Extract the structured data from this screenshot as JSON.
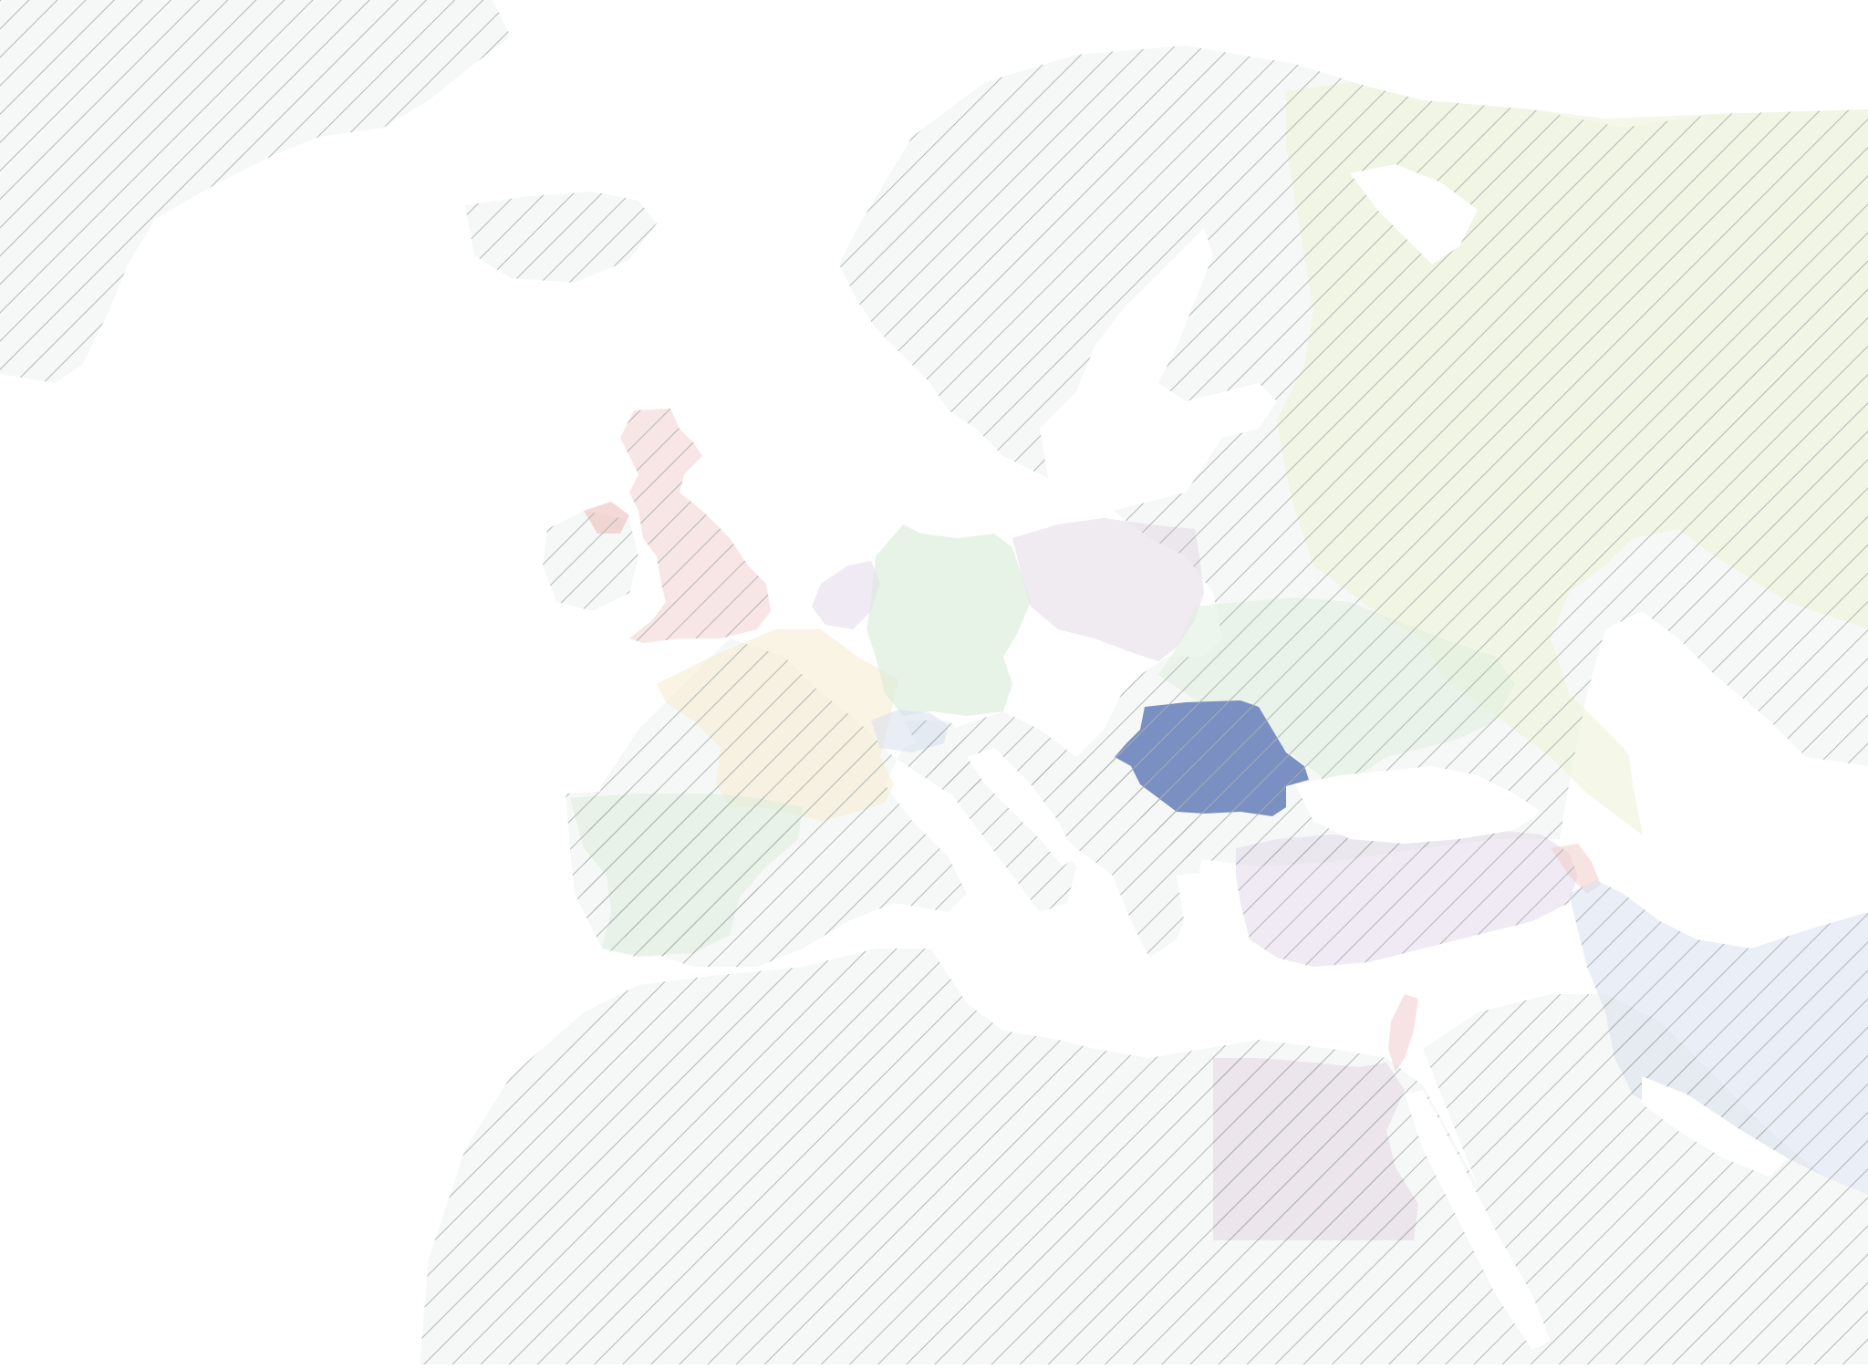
{
  "map": {
    "style": "muted hatched land",
    "colors": {
      "background": "#ffffff",
      "land": "#f6f8f7",
      "hatch": "#aab2ad",
      "selected": "#7a8fc2"
    },
    "selected_country": "Romania",
    "highlighted_countries": [
      {
        "id": "russia",
        "color": "#ecf2d5"
      },
      {
        "id": "united-kingdom",
        "color": "#f0d2d0"
      },
      {
        "id": "france",
        "color": "#f6ebcf"
      },
      {
        "id": "spain",
        "color": "#dcecdc"
      },
      {
        "id": "germany",
        "color": "#d6ead6"
      },
      {
        "id": "poland",
        "color": "#e4d9e6"
      },
      {
        "id": "ukraine",
        "color": "#deeede"
      },
      {
        "id": "benelux",
        "color": "#e2d9ea"
      },
      {
        "id": "switzerland",
        "color": "#d6dfee"
      },
      {
        "id": "romania",
        "color": "#7a8fc2"
      },
      {
        "id": "turkey",
        "color": "#e2d9ea"
      },
      {
        "id": "egypt",
        "color": "#e4d6e4"
      },
      {
        "id": "israel",
        "color": "#f0cccc"
      },
      {
        "id": "armenia",
        "color": "#f2cccc"
      },
      {
        "id": "iran",
        "color": "#d9e0ee"
      }
    ]
  }
}
